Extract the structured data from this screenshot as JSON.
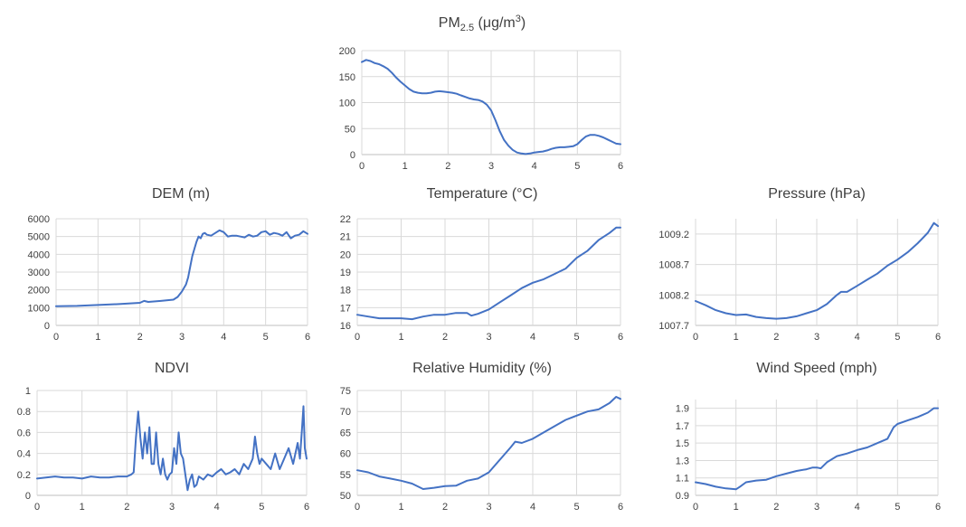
{
  "figure": {
    "accent_color": "#4472c4",
    "grid_color": "#d9d9d9",
    "text_color": "#404040"
  },
  "chart_data": [
    {
      "id": "pm25",
      "type": "line",
      "title": "PM",
      "title_sub": "2.5",
      "title_suffix": " (μg/m",
      "title_sup": "3",
      "title_end": ")",
      "xlim": [
        0,
        6
      ],
      "ylim": [
        0,
        200
      ],
      "xticks": [
        0,
        1,
        2,
        3,
        4,
        5,
        6
      ],
      "yticks": [
        0,
        50,
        100,
        150,
        200
      ],
      "grid": true,
      "series": [
        {
          "x": [
            0,
            0.1,
            0.2,
            0.3,
            0.4,
            0.5,
            0.6,
            0.7,
            0.8,
            0.9,
            1.0,
            1.1,
            1.2,
            1.3,
            1.4,
            1.5,
            1.6,
            1.7,
            1.8,
            1.9,
            2.0,
            2.1,
            2.2,
            2.3,
            2.4,
            2.5,
            2.6,
            2.7,
            2.8,
            2.9,
            3.0,
            3.1,
            3.2,
            3.3,
            3.4,
            3.5,
            3.6,
            3.7,
            3.8,
            3.9,
            4.0,
            4.1,
            4.2,
            4.3,
            4.4,
            4.5,
            4.6,
            4.7,
            4.8,
            4.9,
            5.0,
            5.1,
            5.2,
            5.3,
            5.4,
            5.5,
            5.6,
            5.7,
            5.8,
            5.9,
            6.0
          ],
          "y": [
            178,
            182,
            180,
            176,
            174,
            170,
            165,
            157,
            148,
            140,
            133,
            126,
            121,
            119,
            118,
            118,
            119,
            121,
            122,
            121,
            120,
            119,
            117,
            114,
            111,
            108,
            106,
            105,
            102,
            96,
            85,
            66,
            45,
            28,
            17,
            9,
            4,
            2,
            1,
            2,
            4,
            5,
            6,
            8,
            11,
            13,
            14,
            14,
            15,
            16,
            20,
            28,
            35,
            38,
            38,
            36,
            33,
            29,
            25,
            21,
            20
          ]
        }
      ]
    },
    {
      "id": "dem",
      "type": "line",
      "title": "DEM (m)",
      "xlim": [
        0,
        6
      ],
      "ylim": [
        0,
        6000
      ],
      "xticks": [
        0,
        1,
        2,
        3,
        4,
        5,
        6
      ],
      "yticks": [
        0,
        1000,
        2000,
        3000,
        4000,
        5000,
        6000
      ],
      "grid": true,
      "series": [
        {
          "x": [
            0,
            0.5,
            1.0,
            1.5,
            2.0,
            2.1,
            2.2,
            2.5,
            2.8,
            2.9,
            3.0,
            3.1,
            3.15,
            3.2,
            3.25,
            3.3,
            3.35,
            3.4,
            3.45,
            3.5,
            3.55,
            3.6,
            3.7,
            3.8,
            3.9,
            4.0,
            4.1,
            4.2,
            4.3,
            4.4,
            4.5,
            4.6,
            4.7,
            4.8,
            4.9,
            5.0,
            5.1,
            5.2,
            5.3,
            5.4,
            5.5,
            5.6,
            5.7,
            5.8,
            5.9,
            6.0
          ],
          "y": [
            1080,
            1100,
            1150,
            1200,
            1270,
            1380,
            1320,
            1380,
            1450,
            1600,
            1900,
            2300,
            2700,
            3300,
            3900,
            4300,
            4700,
            5000,
            4900,
            5150,
            5200,
            5100,
            5050,
            5200,
            5350,
            5250,
            5000,
            5050,
            5050,
            5000,
            4950,
            5100,
            5000,
            5050,
            5250,
            5300,
            5100,
            5200,
            5150,
            5050,
            5250,
            4900,
            5050,
            5100,
            5300,
            5150
          ]
        }
      ]
    },
    {
      "id": "temperature",
      "type": "line",
      "title": "Temperature (°C)",
      "xlim": [
        0,
        6
      ],
      "ylim": [
        16,
        22
      ],
      "xticks": [
        0,
        1,
        2,
        3,
        4,
        5,
        6
      ],
      "yticks": [
        16,
        17,
        18,
        19,
        20,
        21,
        22
      ],
      "grid": true,
      "series": [
        {
          "x": [
            0,
            0.25,
            0.5,
            0.75,
            1.0,
            1.25,
            1.5,
            1.75,
            2.0,
            2.25,
            2.5,
            2.6,
            2.75,
            3.0,
            3.25,
            3.5,
            3.75,
            4.0,
            4.25,
            4.5,
            4.75,
            5.0,
            5.25,
            5.5,
            5.75,
            5.9,
            6.0
          ],
          "y": [
            16.6,
            16.5,
            16.4,
            16.4,
            16.4,
            16.35,
            16.5,
            16.6,
            16.6,
            16.7,
            16.7,
            16.55,
            16.65,
            16.9,
            17.3,
            17.7,
            18.1,
            18.4,
            18.6,
            18.9,
            19.2,
            19.8,
            20.2,
            20.8,
            21.2,
            21.5,
            21.5
          ]
        }
      ]
    },
    {
      "id": "pressure",
      "type": "line",
      "title": "Pressure (hPa)",
      "xlim": [
        0,
        6
      ],
      "ylim": [
        1007.7,
        1009.45
      ],
      "xticks": [
        0,
        1,
        2,
        3,
        4,
        5,
        6
      ],
      "yticks": [
        1007.7,
        1008.2,
        1008.7,
        1009.2
      ],
      "grid": true,
      "series": [
        {
          "x": [
            0,
            0.25,
            0.5,
            0.75,
            1.0,
            1.25,
            1.5,
            1.75,
            2.0,
            2.25,
            2.5,
            2.75,
            3.0,
            3.25,
            3.5,
            3.6,
            3.75,
            4.0,
            4.25,
            4.5,
            4.75,
            5.0,
            5.25,
            5.5,
            5.75,
            5.9,
            6.0
          ],
          "y": [
            1008.1,
            1008.03,
            1007.95,
            1007.9,
            1007.87,
            1007.88,
            1007.84,
            1007.82,
            1007.81,
            1007.82,
            1007.85,
            1007.9,
            1007.95,
            1008.05,
            1008.2,
            1008.25,
            1008.25,
            1008.35,
            1008.45,
            1008.55,
            1008.68,
            1008.78,
            1008.9,
            1009.05,
            1009.22,
            1009.38,
            1009.33
          ]
        }
      ]
    },
    {
      "id": "ndvi",
      "type": "line",
      "title": "NDVI",
      "xlim": [
        0,
        6
      ],
      "ylim": [
        0,
        1
      ],
      "xticks": [
        0,
        1,
        2,
        3,
        4,
        5,
        6
      ],
      "yticks": [
        0,
        0.2,
        0.4,
        0.6,
        0.8,
        1
      ],
      "grid": true,
      "series": [
        {
          "x": [
            0,
            0.2,
            0.4,
            0.6,
            0.8,
            1.0,
            1.2,
            1.4,
            1.6,
            1.8,
            2.0,
            2.1,
            2.15,
            2.2,
            2.25,
            2.3,
            2.35,
            2.4,
            2.45,
            2.5,
            2.55,
            2.6,
            2.65,
            2.7,
            2.75,
            2.8,
            2.85,
            2.9,
            2.95,
            3.0,
            3.05,
            3.1,
            3.15,
            3.2,
            3.25,
            3.3,
            3.35,
            3.4,
            3.45,
            3.5,
            3.55,
            3.6,
            3.7,
            3.8,
            3.9,
            4.0,
            4.1,
            4.2,
            4.3,
            4.4,
            4.5,
            4.6,
            4.7,
            4.8,
            4.85,
            4.9,
            4.95,
            5.0,
            5.1,
            5.2,
            5.3,
            5.4,
            5.5,
            5.6,
            5.7,
            5.8,
            5.85,
            5.9,
            5.93,
            5.96,
            6.0
          ],
          "y": [
            0.16,
            0.17,
            0.18,
            0.17,
            0.17,
            0.16,
            0.18,
            0.17,
            0.17,
            0.18,
            0.18,
            0.2,
            0.22,
            0.55,
            0.8,
            0.55,
            0.35,
            0.6,
            0.4,
            0.65,
            0.3,
            0.3,
            0.6,
            0.3,
            0.2,
            0.35,
            0.2,
            0.15,
            0.2,
            0.22,
            0.45,
            0.3,
            0.6,
            0.4,
            0.35,
            0.2,
            0.05,
            0.15,
            0.2,
            0.08,
            0.1,
            0.18,
            0.15,
            0.2,
            0.18,
            0.22,
            0.25,
            0.2,
            0.22,
            0.25,
            0.2,
            0.3,
            0.25,
            0.35,
            0.56,
            0.4,
            0.3,
            0.35,
            0.3,
            0.25,
            0.4,
            0.25,
            0.35,
            0.45,
            0.3,
            0.5,
            0.35,
            0.65,
            0.85,
            0.45,
            0.35
          ]
        }
      ]
    },
    {
      "id": "humidity",
      "type": "line",
      "title": "Relative Humidity (%)",
      "xlim": [
        0,
        6
      ],
      "ylim": [
        50,
        75
      ],
      "xticks": [
        0,
        1,
        2,
        3,
        4,
        5,
        6
      ],
      "yticks": [
        50,
        55,
        60,
        65,
        70,
        75
      ],
      "grid": true,
      "series": [
        {
          "x": [
            0,
            0.25,
            0.5,
            0.75,
            1.0,
            1.25,
            1.5,
            1.75,
            2.0,
            2.25,
            2.5,
            2.75,
            3.0,
            3.25,
            3.5,
            3.6,
            3.75,
            4.0,
            4.25,
            4.5,
            4.75,
            5.0,
            5.25,
            5.5,
            5.75,
            5.9,
            6.0
          ],
          "y": [
            56,
            55.5,
            54.5,
            54,
            53.5,
            52.8,
            51.5,
            51.8,
            52.2,
            52.3,
            53.5,
            54,
            55.5,
            58.5,
            61.5,
            62.8,
            62.5,
            63.5,
            65,
            66.5,
            68,
            69,
            70,
            70.5,
            72,
            73.5,
            73
          ]
        }
      ]
    },
    {
      "id": "wind",
      "type": "line",
      "title": "Wind Speed (mph)",
      "xlim": [
        0,
        6
      ],
      "ylim": [
        0.9,
        2.0
      ],
      "xticks": [
        0,
        1,
        2,
        3,
        4,
        5,
        6
      ],
      "yticks": [
        0.9,
        1.1,
        1.3,
        1.5,
        1.7,
        1.9
      ],
      "grid": true,
      "series": [
        {
          "x": [
            0,
            0.25,
            0.5,
            0.75,
            1.0,
            1.1,
            1.25,
            1.5,
            1.75,
            2.0,
            2.25,
            2.5,
            2.75,
            2.9,
            3.0,
            3.1,
            3.25,
            3.5,
            3.75,
            4.0,
            4.25,
            4.5,
            4.75,
            4.9,
            5.0,
            5.25,
            5.5,
            5.75,
            5.9,
            6.0
          ],
          "y": [
            1.05,
            1.03,
            1.0,
            0.98,
            0.97,
            1.0,
            1.05,
            1.07,
            1.08,
            1.12,
            1.15,
            1.18,
            1.2,
            1.22,
            1.22,
            1.21,
            1.28,
            1.35,
            1.38,
            1.42,
            1.45,
            1.5,
            1.55,
            1.68,
            1.72,
            1.76,
            1.8,
            1.85,
            1.9,
            1.9
          ]
        }
      ]
    }
  ]
}
